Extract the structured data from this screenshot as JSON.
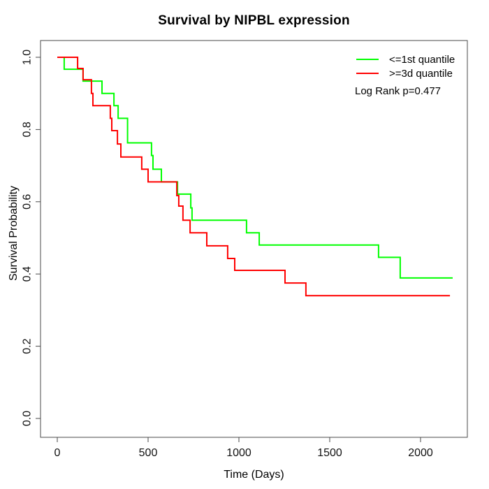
{
  "chart_data": {
    "type": "line",
    "variant": "kaplan-meier-step-curves",
    "title": "Survival by NIPBL expression",
    "xlabel": "Time (Days)",
    "ylabel": "Survival Probability",
    "xlim": [
      0,
      2200
    ],
    "ylim": [
      0,
      1
    ],
    "x_ticks": [
      "0",
      "500",
      "1000",
      "1500",
      "2000"
    ],
    "y_ticks": [
      "1.0",
      "0.8",
      "0.6",
      "0.4",
      "0.2",
      "0.0"
    ],
    "grid": false,
    "legend_position": "top-right",
    "annotation": "Log Rank p=0.477",
    "series": [
      {
        "name": "<=1st quantile",
        "color": "#00ff00",
        "start": [
          0,
          1.0
        ],
        "steps": [
          [
            38,
            0.967
          ],
          [
            142,
            0.934
          ],
          [
            246,
            0.9
          ],
          [
            312,
            0.866
          ],
          [
            335,
            0.831
          ],
          [
            387,
            0.763
          ],
          [
            519,
            0.728
          ],
          [
            527,
            0.69
          ],
          [
            573,
            0.655
          ],
          [
            662,
            0.621
          ],
          [
            735,
            0.583
          ],
          [
            742,
            0.549
          ],
          [
            1042,
            0.514
          ],
          [
            1112,
            0.48
          ],
          [
            1769,
            0.446
          ],
          [
            1888,
            0.389
          ]
        ],
        "end_time": 2177
      },
      {
        "name": ">=3d quantile",
        "color": "#ff0000",
        "start": [
          0,
          1.0
        ],
        "steps": [
          [
            112,
            0.969
          ],
          [
            142,
            0.938
          ],
          [
            188,
            0.9
          ],
          [
            196,
            0.866
          ],
          [
            292,
            0.831
          ],
          [
            300,
            0.797
          ],
          [
            331,
            0.76
          ],
          [
            350,
            0.724
          ],
          [
            465,
            0.69
          ],
          [
            500,
            0.655
          ],
          [
            658,
            0.617
          ],
          [
            669,
            0.588
          ],
          [
            692,
            0.549
          ],
          [
            731,
            0.514
          ],
          [
            823,
            0.478
          ],
          [
            938,
            0.443
          ],
          [
            977,
            0.41
          ],
          [
            1254,
            0.375
          ],
          [
            1369,
            0.34
          ]
        ],
        "end_time": 2162
      }
    ],
    "axis_color": "#4a4a4a",
    "text_color": "#111111"
  }
}
